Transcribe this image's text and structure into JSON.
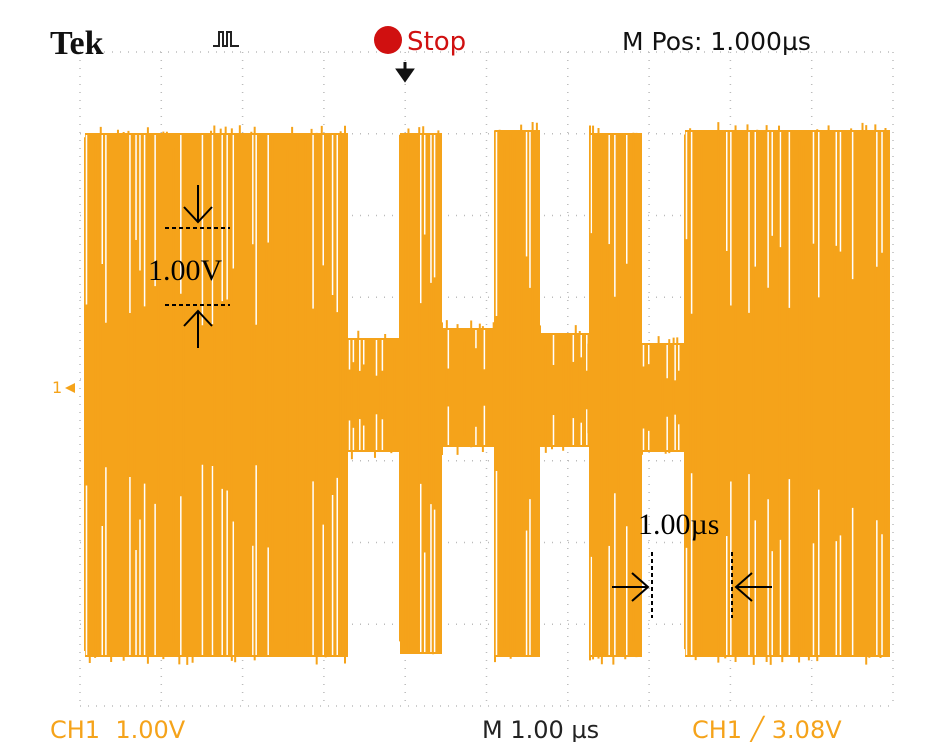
{
  "header": {
    "brand": "Tek",
    "status": "Stop",
    "position": "M Pos: 1.000µs"
  },
  "screen": {
    "channel_marker": "1"
  },
  "annotations": {
    "voltage": "1.00V",
    "time": "1.00µs"
  },
  "footer": {
    "channel_scale": "CH1  1.00V",
    "timebase": "M 1.00 µs",
    "trigger": "CH1 ╱ 3.08V"
  }
}
